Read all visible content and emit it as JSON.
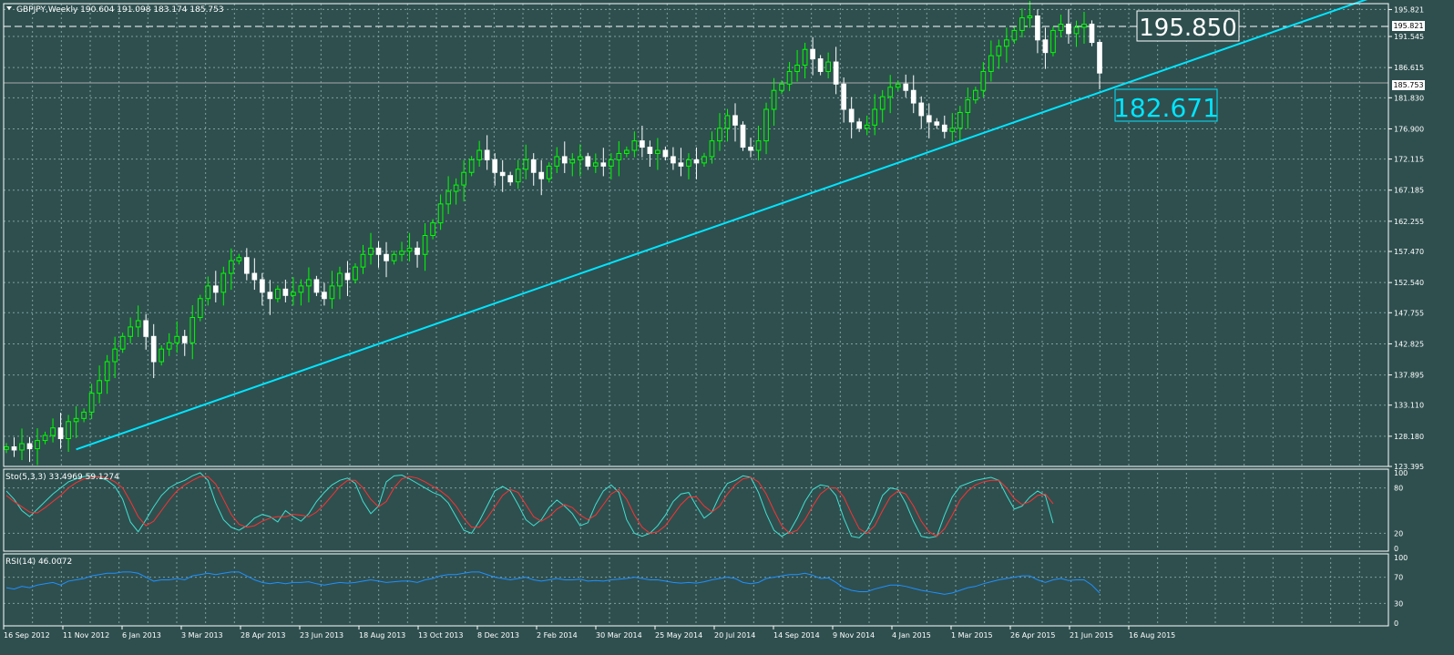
{
  "colors": {
    "background": "#2f4f4f",
    "grid": "#7f9f9f",
    "axis_text": "#ffffff",
    "bull": "#00ff00",
    "bear": "#ffffff",
    "trendline": "#00e5ff",
    "stoch_main": "#40e0d0",
    "stoch_signal": "#ff3030",
    "rsi": "#1e90ff",
    "level_line": "#ffffff"
  },
  "header": {
    "menu_icon": "triangle-down-icon",
    "symbol_info": "GBPJPY,Weekly  190.604 191.098 183.174 185.753"
  },
  "annotations": {
    "high_label": "195.850",
    "trend_label": "182.671",
    "current_price_label": "185.753",
    "high_price_label": "195.821"
  },
  "chart_data": [
    {
      "type": "candlestick",
      "title": "GBPJPY,Weekly",
      "ohlc_last": {
        "open": 190.604,
        "high": 191.098,
        "low": 183.174,
        "close": 185.753
      },
      "ylim": [
        123.395,
        196.75
      ],
      "y_ticks": [
        "195.821",
        "191.545",
        "186.615",
        "181.830",
        "176.900",
        "172.115",
        "167.185",
        "162.255",
        "157.470",
        "152.540",
        "147.755",
        "142.825",
        "137.895",
        "133.110",
        "128.180",
        "123.395"
      ],
      "x_ticks": [
        "16 Sep 2012",
        "11 Nov 2012",
        "6 Jan 2013",
        "3 Mar 2013",
        "28 Apr 2013",
        "23 Jun 2013",
        "18 Aug 2013",
        "13 Oct 2013",
        "8 Dec 2013",
        "2 Feb 2014",
        "30 Mar 2014",
        "25 May 2014",
        "20 Jul 2014",
        "14 Sep 2014",
        "9 Nov 2014",
        "4 Jan 2015",
        "1 Mar 2015",
        "26 Apr 2015",
        "21 Jun 2015",
        "16 Aug 2015"
      ],
      "closes": [
        126.5,
        126.0,
        127.0,
        126.2,
        127.5,
        128.3,
        129.5,
        127.8,
        130.5,
        131.0,
        132.0,
        135.0,
        137.0,
        140.0,
        142.0,
        144.0,
        145.5,
        146.5,
        144.0,
        140.0,
        142.0,
        143.0,
        144.0,
        143.0,
        147.0,
        150.0,
        152.0,
        151.0,
        154.0,
        156.0,
        156.5,
        154.0,
        153.0,
        151.0,
        150.0,
        151.5,
        150.5,
        151.0,
        152.0,
        153.0,
        151.0,
        150.0,
        152.0,
        154.0,
        153.0,
        155.0,
        157.0,
        158.0,
        157.0,
        156.0,
        157.0,
        157.5,
        158.0,
        157.0,
        160.0,
        162.0,
        165.0,
        167.0,
        168.0,
        170.0,
        172.0,
        173.5,
        172.0,
        170.0,
        169.5,
        168.5,
        170.5,
        172.0,
        170.0,
        169.0,
        171.0,
        172.5,
        171.5,
        172.0,
        172.5,
        171.0,
        171.5,
        171.0,
        172.0,
        173.0,
        173.5,
        175.0,
        174.0,
        173.0,
        173.5,
        172.5,
        171.5,
        171.0,
        172.0,
        171.5,
        172.5,
        175.0,
        177.0,
        179.0,
        177.5,
        174.0,
        173.5,
        175.0,
        180.0,
        183.0,
        184.0,
        186.0,
        187.0,
        189.5,
        188.0,
        186.0,
        187.5,
        184.0,
        180.0,
        178.0,
        177.0,
        177.5,
        180.0,
        182.0,
        183.5,
        184.0,
        183.0,
        181.0,
        179.0,
        178.0,
        177.5,
        176.5,
        177.0,
        179.5,
        181.5,
        183.0,
        186.0,
        188.5,
        190.0,
        191.0,
        192.5,
        194.5,
        194.8,
        191.0,
        189.0,
        192.5,
        193.5,
        192.0,
        193.0,
        193.5,
        190.604,
        185.753
      ],
      "trendline": {
        "from": {
          "x": "11 Nov 2012",
          "y": 126.1
        },
        "to": {
          "x": "16 Aug 2015",
          "y": 182.671
        },
        "extends_right": true
      }
    },
    {
      "type": "line",
      "title": "Sto(5,3,3) 33.4969 59.1274",
      "ylim": [
        0,
        100
      ],
      "levels": [
        20,
        80
      ],
      "y_ticks": [
        "100",
        "80",
        "20",
        "0"
      ],
      "series": [
        {
          "name": "main",
          "values": [
            76,
            65,
            50,
            42,
            52,
            62,
            72,
            80,
            88,
            92,
            95,
            96,
            94,
            90,
            82,
            65,
            35,
            22,
            38,
            55,
            70,
            80,
            86,
            90,
            96,
            100,
            90,
            60,
            38,
            28,
            24,
            30,
            40,
            45,
            42,
            35,
            50,
            42,
            36,
            46,
            62,
            74,
            84,
            90,
            93,
            86,
            62,
            46,
            56,
            88,
            96,
            97,
            92,
            86,
            80,
            74,
            70,
            60,
            42,
            24,
            20,
            36,
            56,
            76,
            82,
            76,
            58,
            38,
            30,
            38,
            54,
            64,
            56,
            46,
            30,
            34,
            58,
            76,
            84,
            74,
            38,
            20,
            16,
            20,
            30,
            44,
            62,
            72,
            74,
            56,
            40,
            48,
            70,
            86,
            90,
            96,
            94,
            74,
            46,
            24,
            16,
            22,
            40,
            62,
            78,
            84,
            82,
            70,
            40,
            16,
            14,
            24,
            44,
            70,
            80,
            78,
            60,
            36,
            16,
            14,
            16,
            44,
            68,
            82,
            86,
            90,
            92,
            94,
            90,
            70,
            52,
            56,
            68,
            76,
            70,
            33.4969
          ]
        },
        {
          "name": "signal",
          "values": [
            70,
            62,
            55,
            48,
            47,
            54,
            62,
            70,
            80,
            87,
            92,
            94,
            95,
            93,
            88,
            80,
            62,
            42,
            30,
            36,
            50,
            64,
            76,
            84,
            90,
            95,
            95,
            85,
            65,
            45,
            32,
            28,
            30,
            36,
            40,
            42,
            42,
            45,
            44,
            42,
            48,
            58,
            70,
            82,
            90,
            90,
            80,
            65,
            55,
            62,
            80,
            92,
            95,
            93,
            88,
            82,
            76,
            68,
            56,
            40,
            28,
            28,
            40,
            55,
            70,
            78,
            74,
            58,
            42,
            36,
            42,
            52,
            58,
            54,
            44,
            38,
            44,
            58,
            72,
            78,
            65,
            44,
            28,
            20,
            22,
            30,
            44,
            58,
            68,
            68,
            56,
            48,
            56,
            72,
            84,
            92,
            94,
            88,
            72,
            50,
            30,
            20,
            24,
            38,
            56,
            72,
            80,
            80,
            68,
            46,
            26,
            20,
            30,
            50,
            68,
            76,
            72,
            56,
            36,
            22,
            16,
            26,
            44,
            64,
            76,
            84,
            88,
            90,
            90,
            80,
            66,
            58,
            62,
            70,
            72,
            59.1274
          ]
        }
      ]
    },
    {
      "type": "line",
      "title": "RSI(14) 46.0072",
      "ylim": [
        0,
        100
      ],
      "levels": [
        30,
        70
      ],
      "y_ticks": [
        "100",
        "70",
        "30",
        "0"
      ],
      "series": [
        {
          "name": "rsi",
          "values": [
            54,
            52,
            56,
            54,
            58,
            60,
            62,
            58,
            64,
            66,
            68,
            72,
            74,
            76,
            76,
            78,
            78,
            76,
            70,
            64,
            66,
            66,
            68,
            66,
            72,
            74,
            76,
            74,
            76,
            78,
            78,
            72,
            66,
            62,
            60,
            62,
            60,
            62,
            62,
            63,
            60,
            58,
            60,
            62,
            61,
            62,
            64,
            66,
            64,
            62,
            63,
            64,
            64,
            62,
            66,
            68,
            72,
            74,
            74,
            76,
            78,
            78,
            74,
            70,
            68,
            66,
            68,
            70,
            66,
            64,
            66,
            68,
            66,
            66,
            67,
            64,
            65,
            64,
            66,
            67,
            68,
            70,
            68,
            66,
            66,
            64,
            62,
            61,
            62,
            61,
            63,
            66,
            68,
            70,
            68,
            62,
            60,
            62,
            68,
            70,
            72,
            74,
            74,
            76,
            73,
            68,
            69,
            62,
            54,
            50,
            48,
            48,
            52,
            55,
            58,
            58,
            56,
            53,
            50,
            48,
            46,
            44,
            46,
            50,
            54,
            56,
            60,
            63,
            66,
            68,
            70,
            72,
            72,
            66,
            62,
            66,
            68,
            65,
            66,
            66,
            58,
            46.0072
          ]
        }
      ]
    }
  ]
}
